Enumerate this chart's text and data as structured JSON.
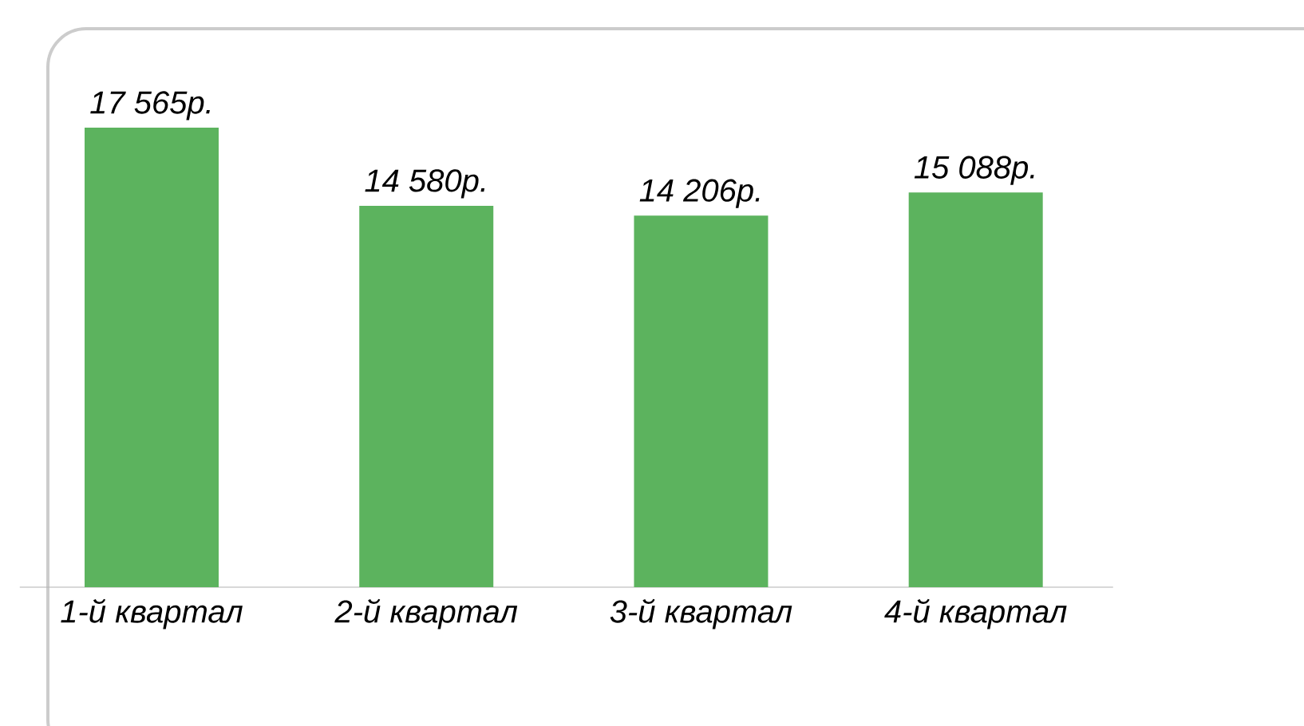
{
  "chart_data": {
    "type": "bar",
    "categories": [
      "1-й квартал",
      "2-й квартал",
      "3-й квартал",
      "4-й квартал"
    ],
    "values": [
      17565,
      14580,
      14206,
      15088
    ],
    "value_labels": [
      "17 565р.",
      "14 580р.",
      "14 206р.",
      "15 088р."
    ],
    "color": "#5cb35e"
  }
}
